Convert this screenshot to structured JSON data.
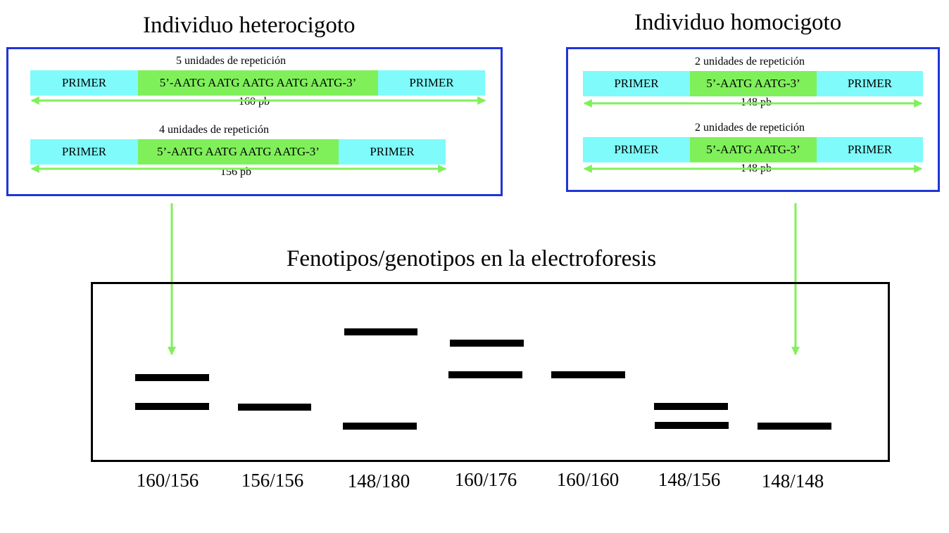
{
  "heterozygous": {
    "title": "Individuo heterocigoto",
    "alleles": [
      {
        "caption": "5 unidades de repetición",
        "left_primer": "PRIMER",
        "sequence": "5’-AATG AATG AATG AATG AATG-3’",
        "right_primer": "PRIMER",
        "length": "160 pb"
      },
      {
        "caption": "4 unidades de repetición",
        "left_primer": "PRIMER",
        "sequence": "5’-AATG AATG AATG AATG-3’",
        "right_primer": "PRIMER",
        "length": "156 pb"
      }
    ]
  },
  "homozygous": {
    "title": "Individuo homocigoto",
    "alleles": [
      {
        "caption": "2 unidades de repetición",
        "left_primer": "PRIMER",
        "sequence": "5’-AATG AATG-3’",
        "right_primer": "PRIMER",
        "length": "148 pb"
      },
      {
        "caption": "2 unidades de repetición",
        "left_primer": "PRIMER",
        "sequence": "5’-AATG AATG-3’",
        "right_primer": "PRIMER",
        "length": "148 pb"
      }
    ]
  },
  "gel": {
    "title": "Fenotipos/genotipos en la electroforesis",
    "lanes": [
      "160/156",
      "156/156",
      "148/180",
      "160/176",
      "160/160",
      "148/156",
      "148/148"
    ]
  },
  "colors": {
    "panel_border": "#1f35d6",
    "primer": "#7ffbfb",
    "repeat": "#7ff05a",
    "arrow": "#7ff05a",
    "band": "#000000"
  }
}
